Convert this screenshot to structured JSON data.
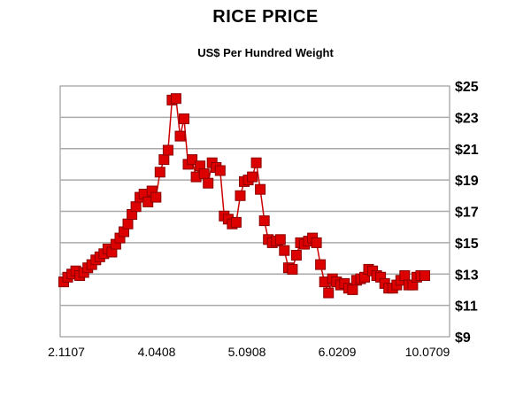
{
  "chart_data": {
    "type": "line",
    "title": "RICE PRICE",
    "subtitle": "US$ Per Hundred Weight",
    "xlabel": "",
    "ylabel": "",
    "x_tick_labels": [
      "2.1107",
      "4.0408",
      "5.0908",
      "6.0209",
      "10.0709"
    ],
    "y_tick_labels": [
      "$25",
      "$23",
      "$21",
      "$19",
      "$17",
      "$15",
      "$13",
      "$11",
      "$9"
    ],
    "ylim": [
      9,
      25
    ],
    "grid": true,
    "marker": "square",
    "colors": {
      "marker": "#dd0000",
      "line": "#cc0000",
      "grid": "#aaaaaa",
      "frame": "#888888"
    },
    "series": [
      {
        "values": [
          12.5,
          12.8,
          13.0,
          13.2,
          12.9,
          13.1,
          13.4,
          13.6,
          13.9,
          14.1,
          14.3,
          14.6,
          14.4,
          14.9,
          15.3,
          15.7,
          16.2,
          16.8,
          17.3,
          17.9,
          18.1,
          17.6,
          18.3,
          17.9,
          19.5,
          20.3,
          20.9,
          24.1,
          24.2,
          21.8,
          22.9,
          20.0,
          20.3,
          19.2,
          19.9,
          19.4,
          18.8,
          20.1,
          19.8,
          19.6,
          16.7,
          16.5,
          16.2,
          16.3,
          18.0,
          18.9,
          19.0,
          19.2,
          20.1,
          18.4,
          16.4,
          15.2,
          15.0,
          15.1,
          15.2,
          14.5,
          13.4,
          13.3,
          14.2,
          15.0,
          14.9,
          15.1,
          15.3,
          15.0,
          13.6,
          12.5,
          11.8,
          12.7,
          12.5,
          12.3,
          12.4,
          12.1,
          12.0,
          12.6,
          12.7,
          12.8,
          13.3,
          13.2,
          12.9,
          12.8,
          12.4,
          12.1,
          12.1,
          12.3,
          12.6,
          12.9,
          12.3,
          12.3,
          12.8,
          12.9,
          12.9
        ]
      }
    ]
  }
}
